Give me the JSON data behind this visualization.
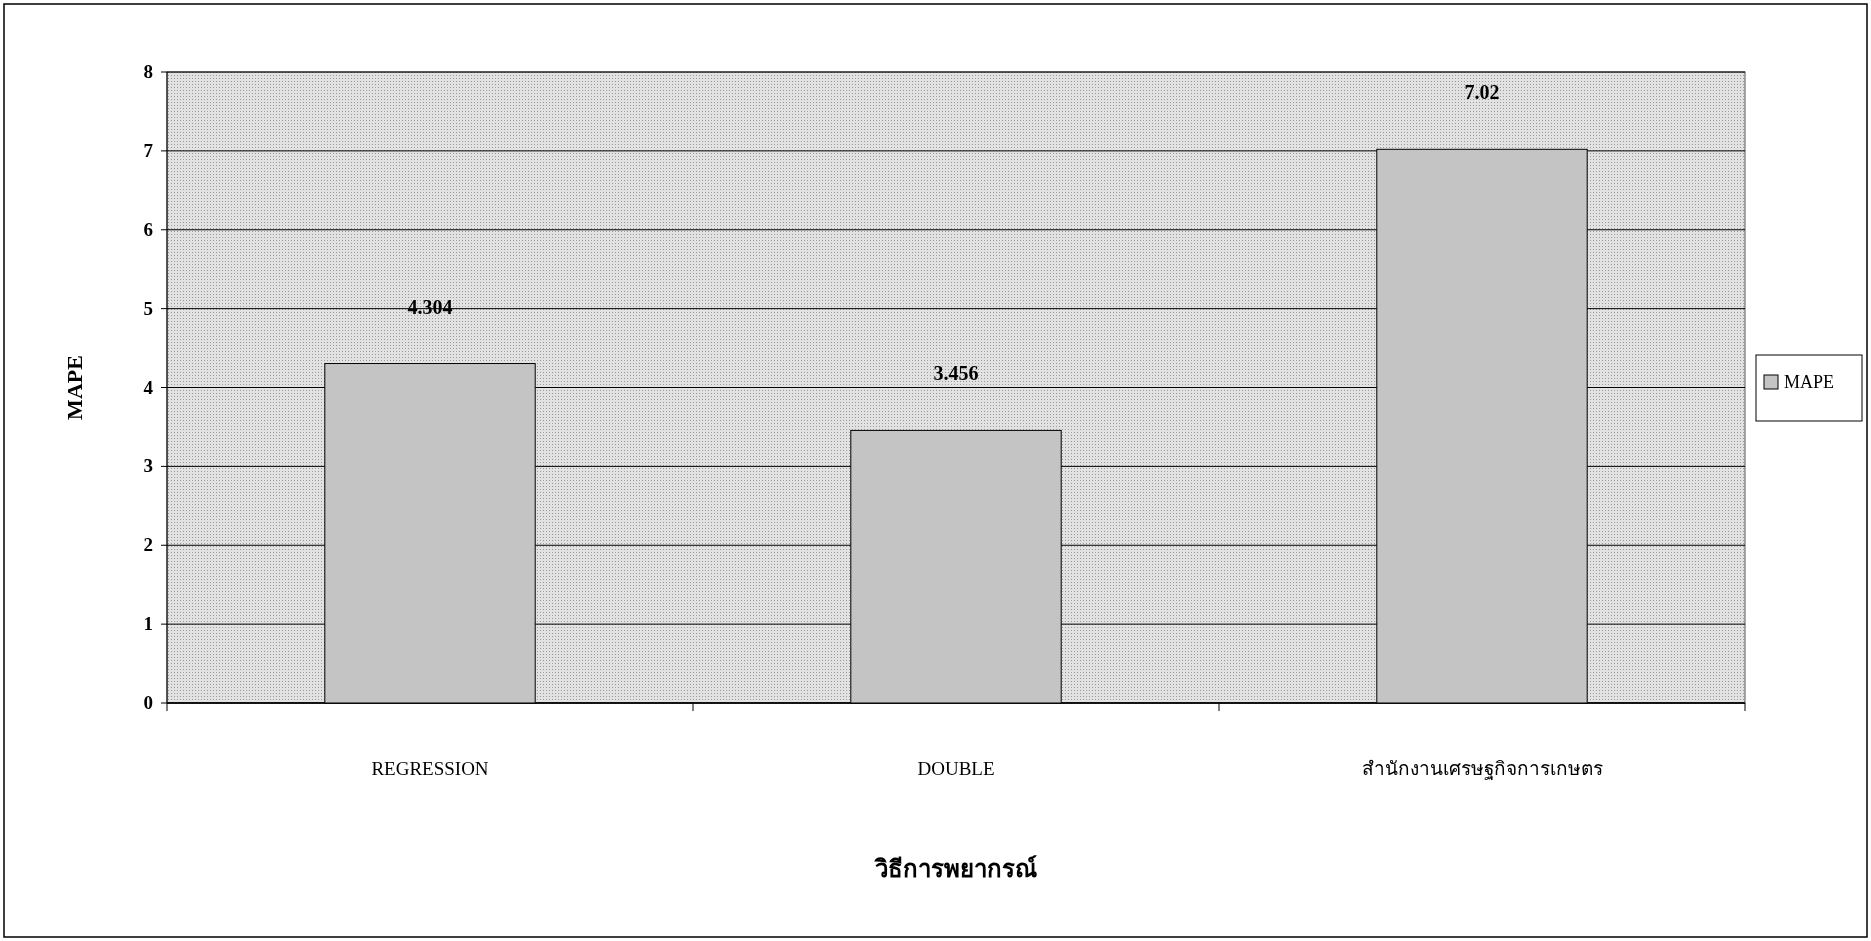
{
  "chart_data": {
    "type": "bar",
    "xlabel": "วิธีการพยากรณ์",
    "ylabel": "MAPE",
    "categories": [
      "REGRESSION",
      "DOUBLE",
      "สำนักงานเศรษฐกิจการเกษตร"
    ],
    "series": [
      {
        "name": "MAPE",
        "color": "#c4c4c4",
        "values": [
          4.304,
          3.456,
          7.02
        ]
      }
    ],
    "value_labels": [
      "4.304",
      "3.456",
      "7.02"
    ],
    "ylim": [
      0,
      8
    ],
    "yticks": [
      0,
      1,
      2,
      3,
      4,
      5,
      6,
      7,
      8
    ],
    "grid": "y",
    "legend": "right"
  }
}
